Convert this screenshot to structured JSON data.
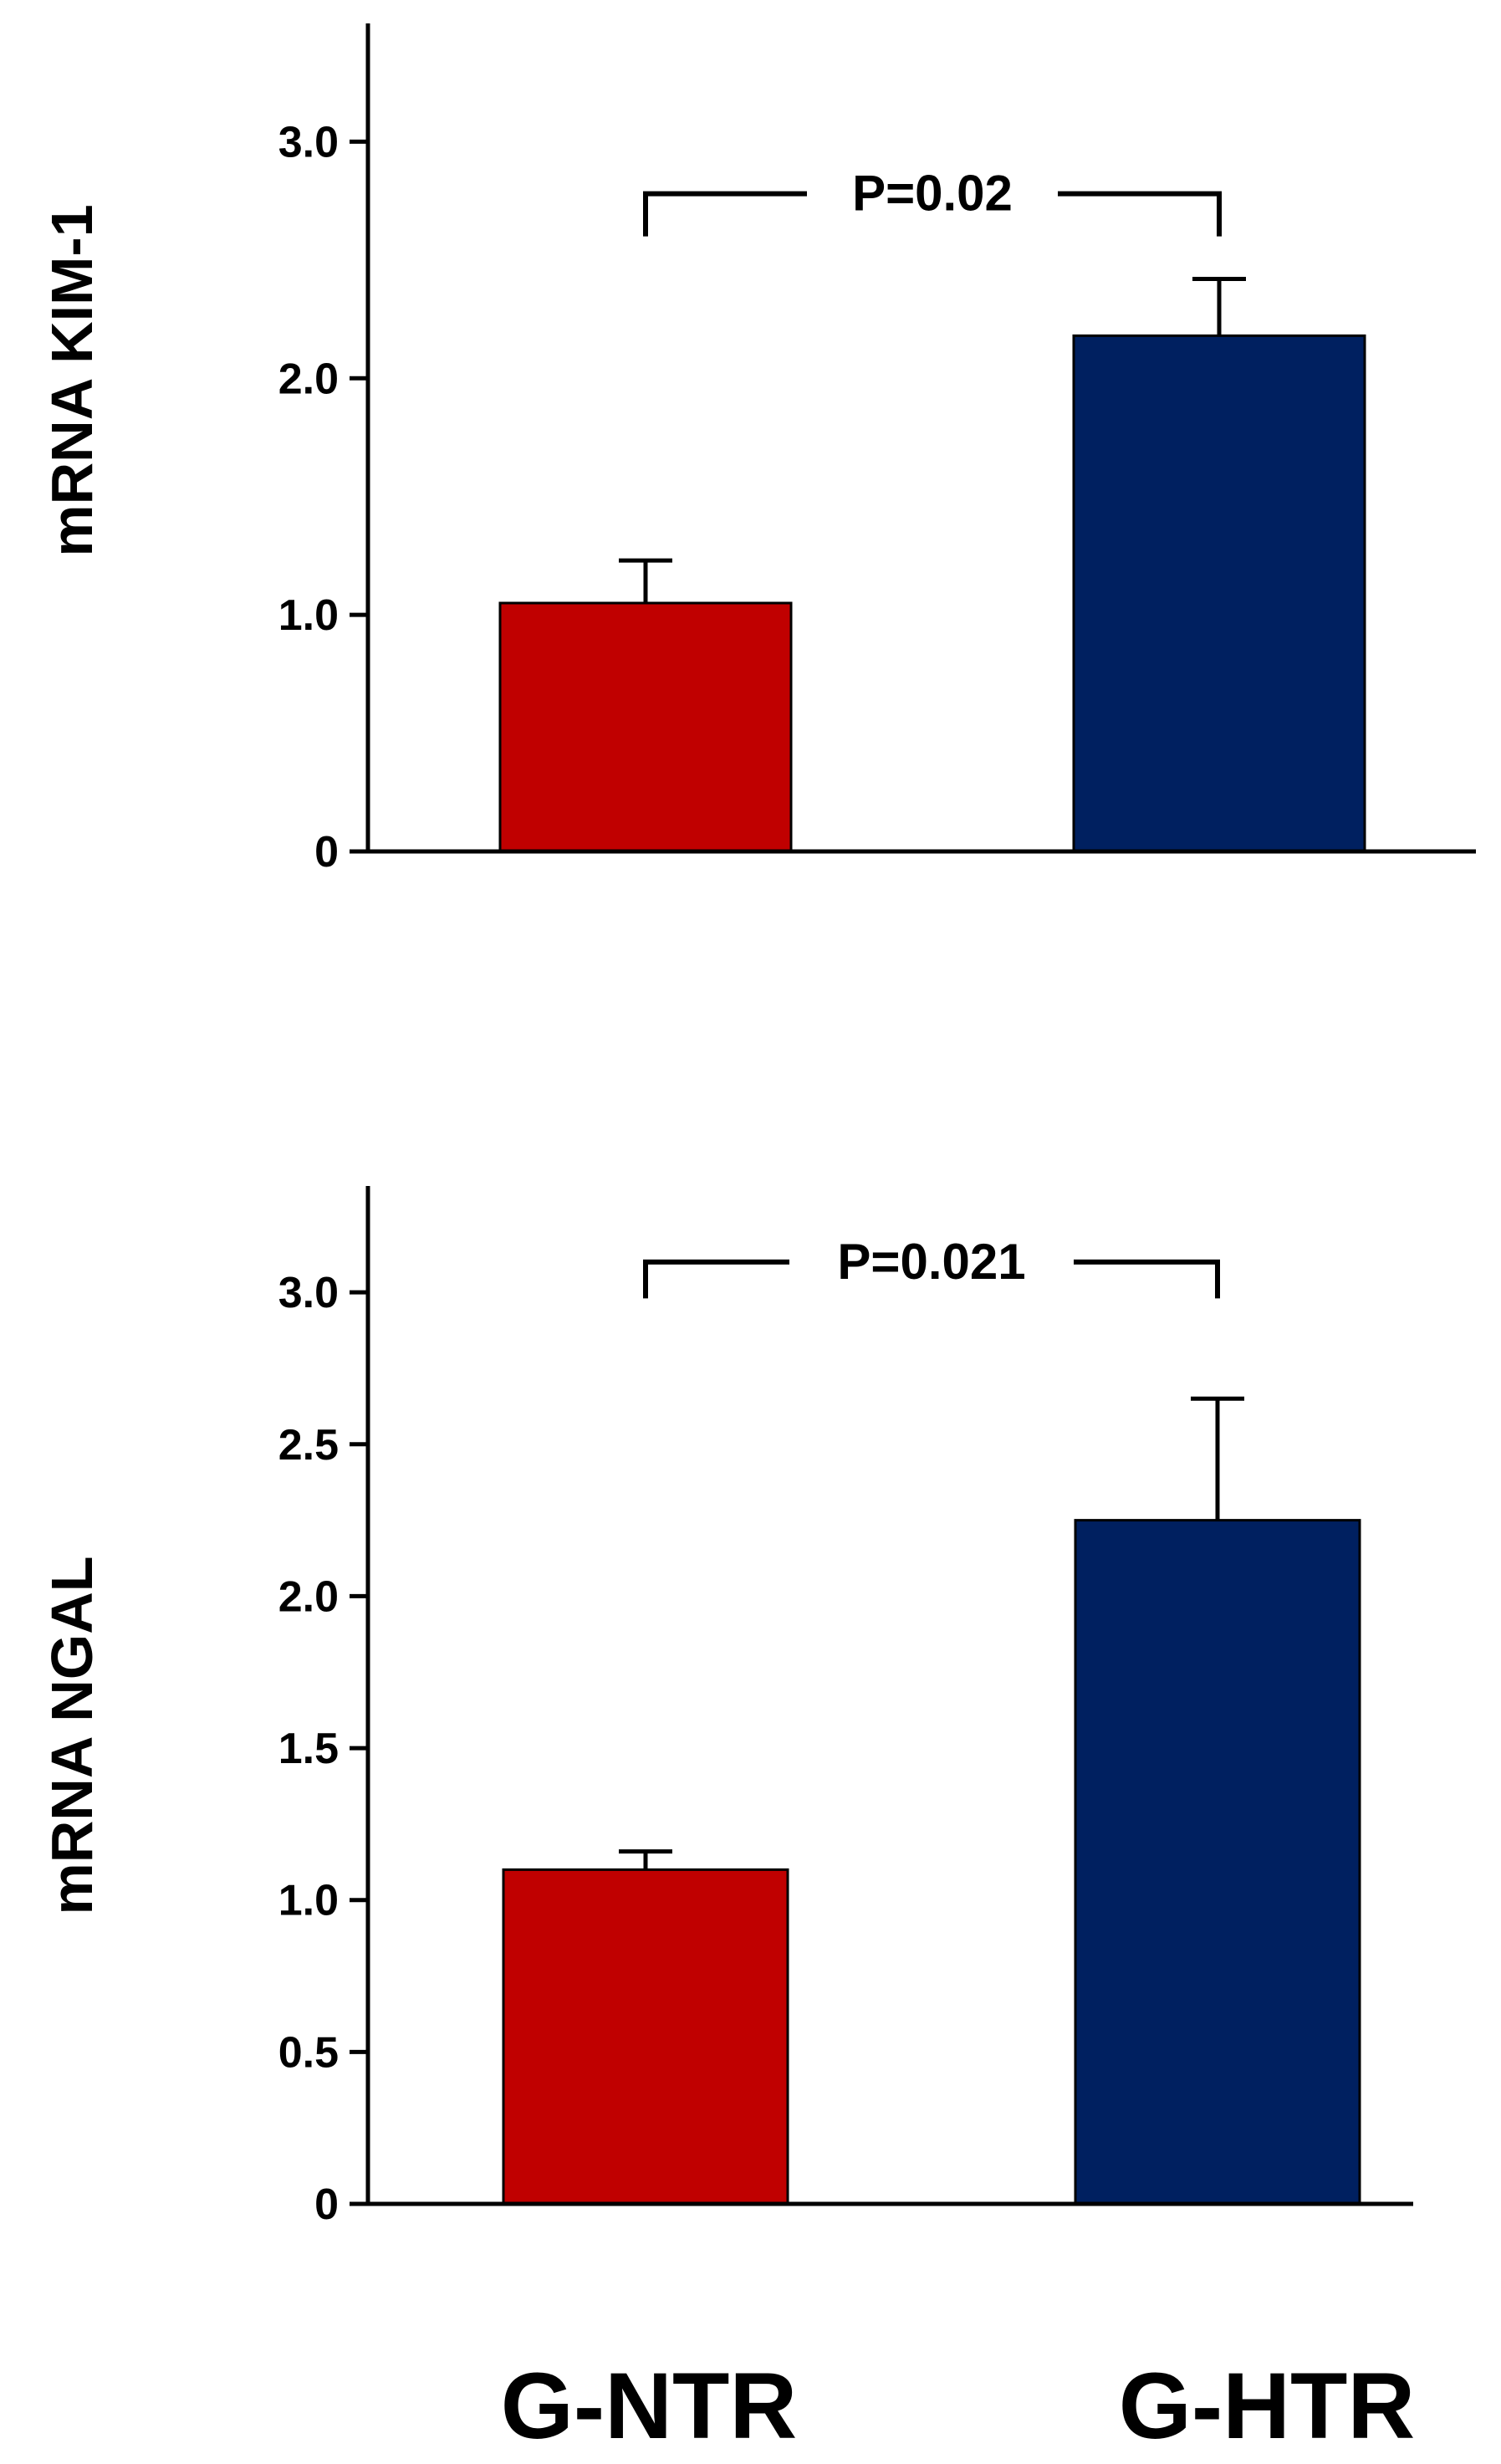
{
  "chart_data": [
    {
      "type": "bar",
      "id": "kim1",
      "ylabel": "mRNA KIM-1",
      "xlabel": "",
      "categories": [
        "G-NTR",
        "G-HTR"
      ],
      "values": [
        1.05,
        2.18
      ],
      "errors": [
        0.18,
        0.24
      ],
      "ylim": [
        0,
        3.5
      ],
      "yticks": [
        0,
        1.0,
        2.0,
        3.0
      ],
      "ytick_labels": [
        "0",
        "1.0",
        "2.0",
        "3.0"
      ],
      "bar_colors": [
        "#C00000",
        "#002060"
      ],
      "significance": {
        "label": "P=0.02",
        "between": [
          "G-NTR",
          "G-HTR"
        ],
        "y": 2.78,
        "drop": 0.18
      },
      "grid": false
    },
    {
      "type": "bar",
      "id": "ngal",
      "ylabel": "mRNA NGAL",
      "xlabel": "",
      "categories": [
        "G-NTR",
        "G-HTR"
      ],
      "values": [
        1.1,
        2.25
      ],
      "errors": [
        0.06,
        0.4
      ],
      "ylim": [
        0,
        3.35
      ],
      "yticks": [
        0,
        0.5,
        1.0,
        1.5,
        2.0,
        2.5,
        3.0
      ],
      "ytick_labels": [
        "0",
        "0.5",
        "1.0",
        "1.5",
        "2.0",
        "2.5",
        "3.0"
      ],
      "bar_colors": [
        "#C00000",
        "#002060"
      ],
      "significance": {
        "label": "P=0.021",
        "between": [
          "G-NTR",
          "G-HTR"
        ],
        "y": 3.1,
        "drop": 0.12
      },
      "grid": false
    }
  ],
  "x_category_labels": [
    "G-NTR",
    "G-HTR"
  ]
}
